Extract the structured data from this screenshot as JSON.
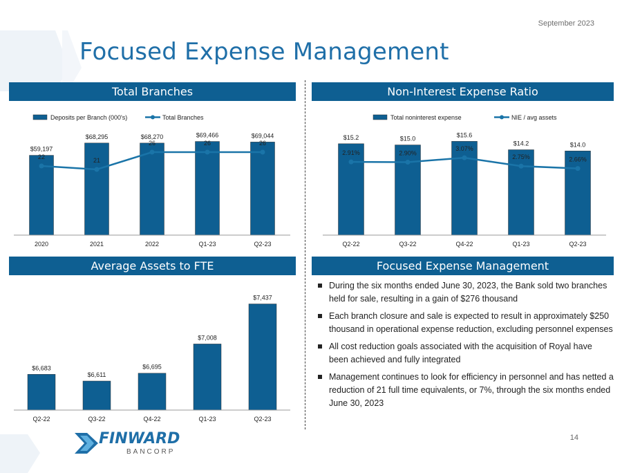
{
  "date": "September 2023",
  "title": "Focused Expense Management",
  "page_number": "14",
  "logo": {
    "name": "FINWARD",
    "sub": "BANCORP"
  },
  "colors": {
    "header": "#0e5f92",
    "bar": "#0e5f92",
    "line": "#1a74a8",
    "title": "#1f6fa8"
  },
  "panels": {
    "branches": "Total Branches",
    "nie": "Non-Interest Expense Ratio",
    "assets": "Average Assets to FTE",
    "focus": "Focused Expense Management"
  },
  "bullets": [
    "During the six months ended June 30, 2023, the Bank sold two branches held for sale, resulting in a gain of $276 thousand",
    "Each branch closure and sale is expected to result in approximately $250 thousand in operational expense reduction, excluding personnel expenses",
    "All cost reduction goals associated with the acquisition of Royal have been achieved and fully integrated",
    "Management continues to look for efficiency in personnel and has netted a reduction of 21 full time equivalents, or 7%, through the six months ended June 30, 2023"
  ],
  "chart_data": [
    {
      "type": "bar+line",
      "title": "Total Branches",
      "categories": [
        "2020",
        "2021",
        "2022",
        "Q1-23",
        "Q2-23"
      ],
      "series": [
        {
          "name": "Deposits per Branch (000's)",
          "type": "bar",
          "values": [
            59197,
            68295,
            68270,
            69466,
            69044
          ],
          "labels": [
            "$59,197",
            "$68,295",
            "$68,270",
            "$69,466",
            "$69,044"
          ],
          "ylim": [
            0,
            100000
          ]
        },
        {
          "name": "Total Branches",
          "type": "line",
          "values": [
            22,
            21,
            26,
            26,
            26
          ],
          "labels": [
            "22",
            "21",
            "26",
            "26",
            "26"
          ],
          "ylim": [
            -4,
            29
          ]
        }
      ],
      "legend": "top"
    },
    {
      "type": "bar+line",
      "title": "Non-Interest Expense Ratio",
      "categories": [
        "Q2-22",
        "Q3-22",
        "Q4-22",
        "Q1-23",
        "Q2-23"
      ],
      "series": [
        {
          "name": "Total noninterest expense",
          "type": "bar",
          "values": [
            15.2,
            15.0,
            15.6,
            14.2,
            14.0
          ],
          "labels": [
            "$15.2",
            "$15.0",
            "$15.6",
            "$14.2",
            "$14.0"
          ],
          "ylim": [
            0,
            23
          ]
        },
        {
          "name": "NIE / avg assets",
          "type": "line",
          "values": [
            2.91,
            2.9,
            3.07,
            2.75,
            2.66
          ],
          "labels": [
            "2.91%",
            "2.90%",
            "3.07%",
            "2.75%",
            "2.66%"
          ],
          "ylim": [
            -1.2,
            3.6
          ]
        }
      ],
      "legend": "top"
    },
    {
      "type": "bar",
      "title": "Average Assets to FTE",
      "categories": [
        "Q2-22",
        "Q3-22",
        "Q4-22",
        "Q1-23",
        "Q2-23"
      ],
      "series": [
        {
          "type": "bar",
          "values": [
            6683,
            6611,
            6695,
            7008,
            7437
          ],
          "labels": [
            "$6,683",
            "$6,611",
            "$6,695",
            "$7,008",
            "$7,437"
          ],
          "ylim": [
            6300,
            7500
          ]
        }
      ],
      "legend": "none"
    }
  ]
}
